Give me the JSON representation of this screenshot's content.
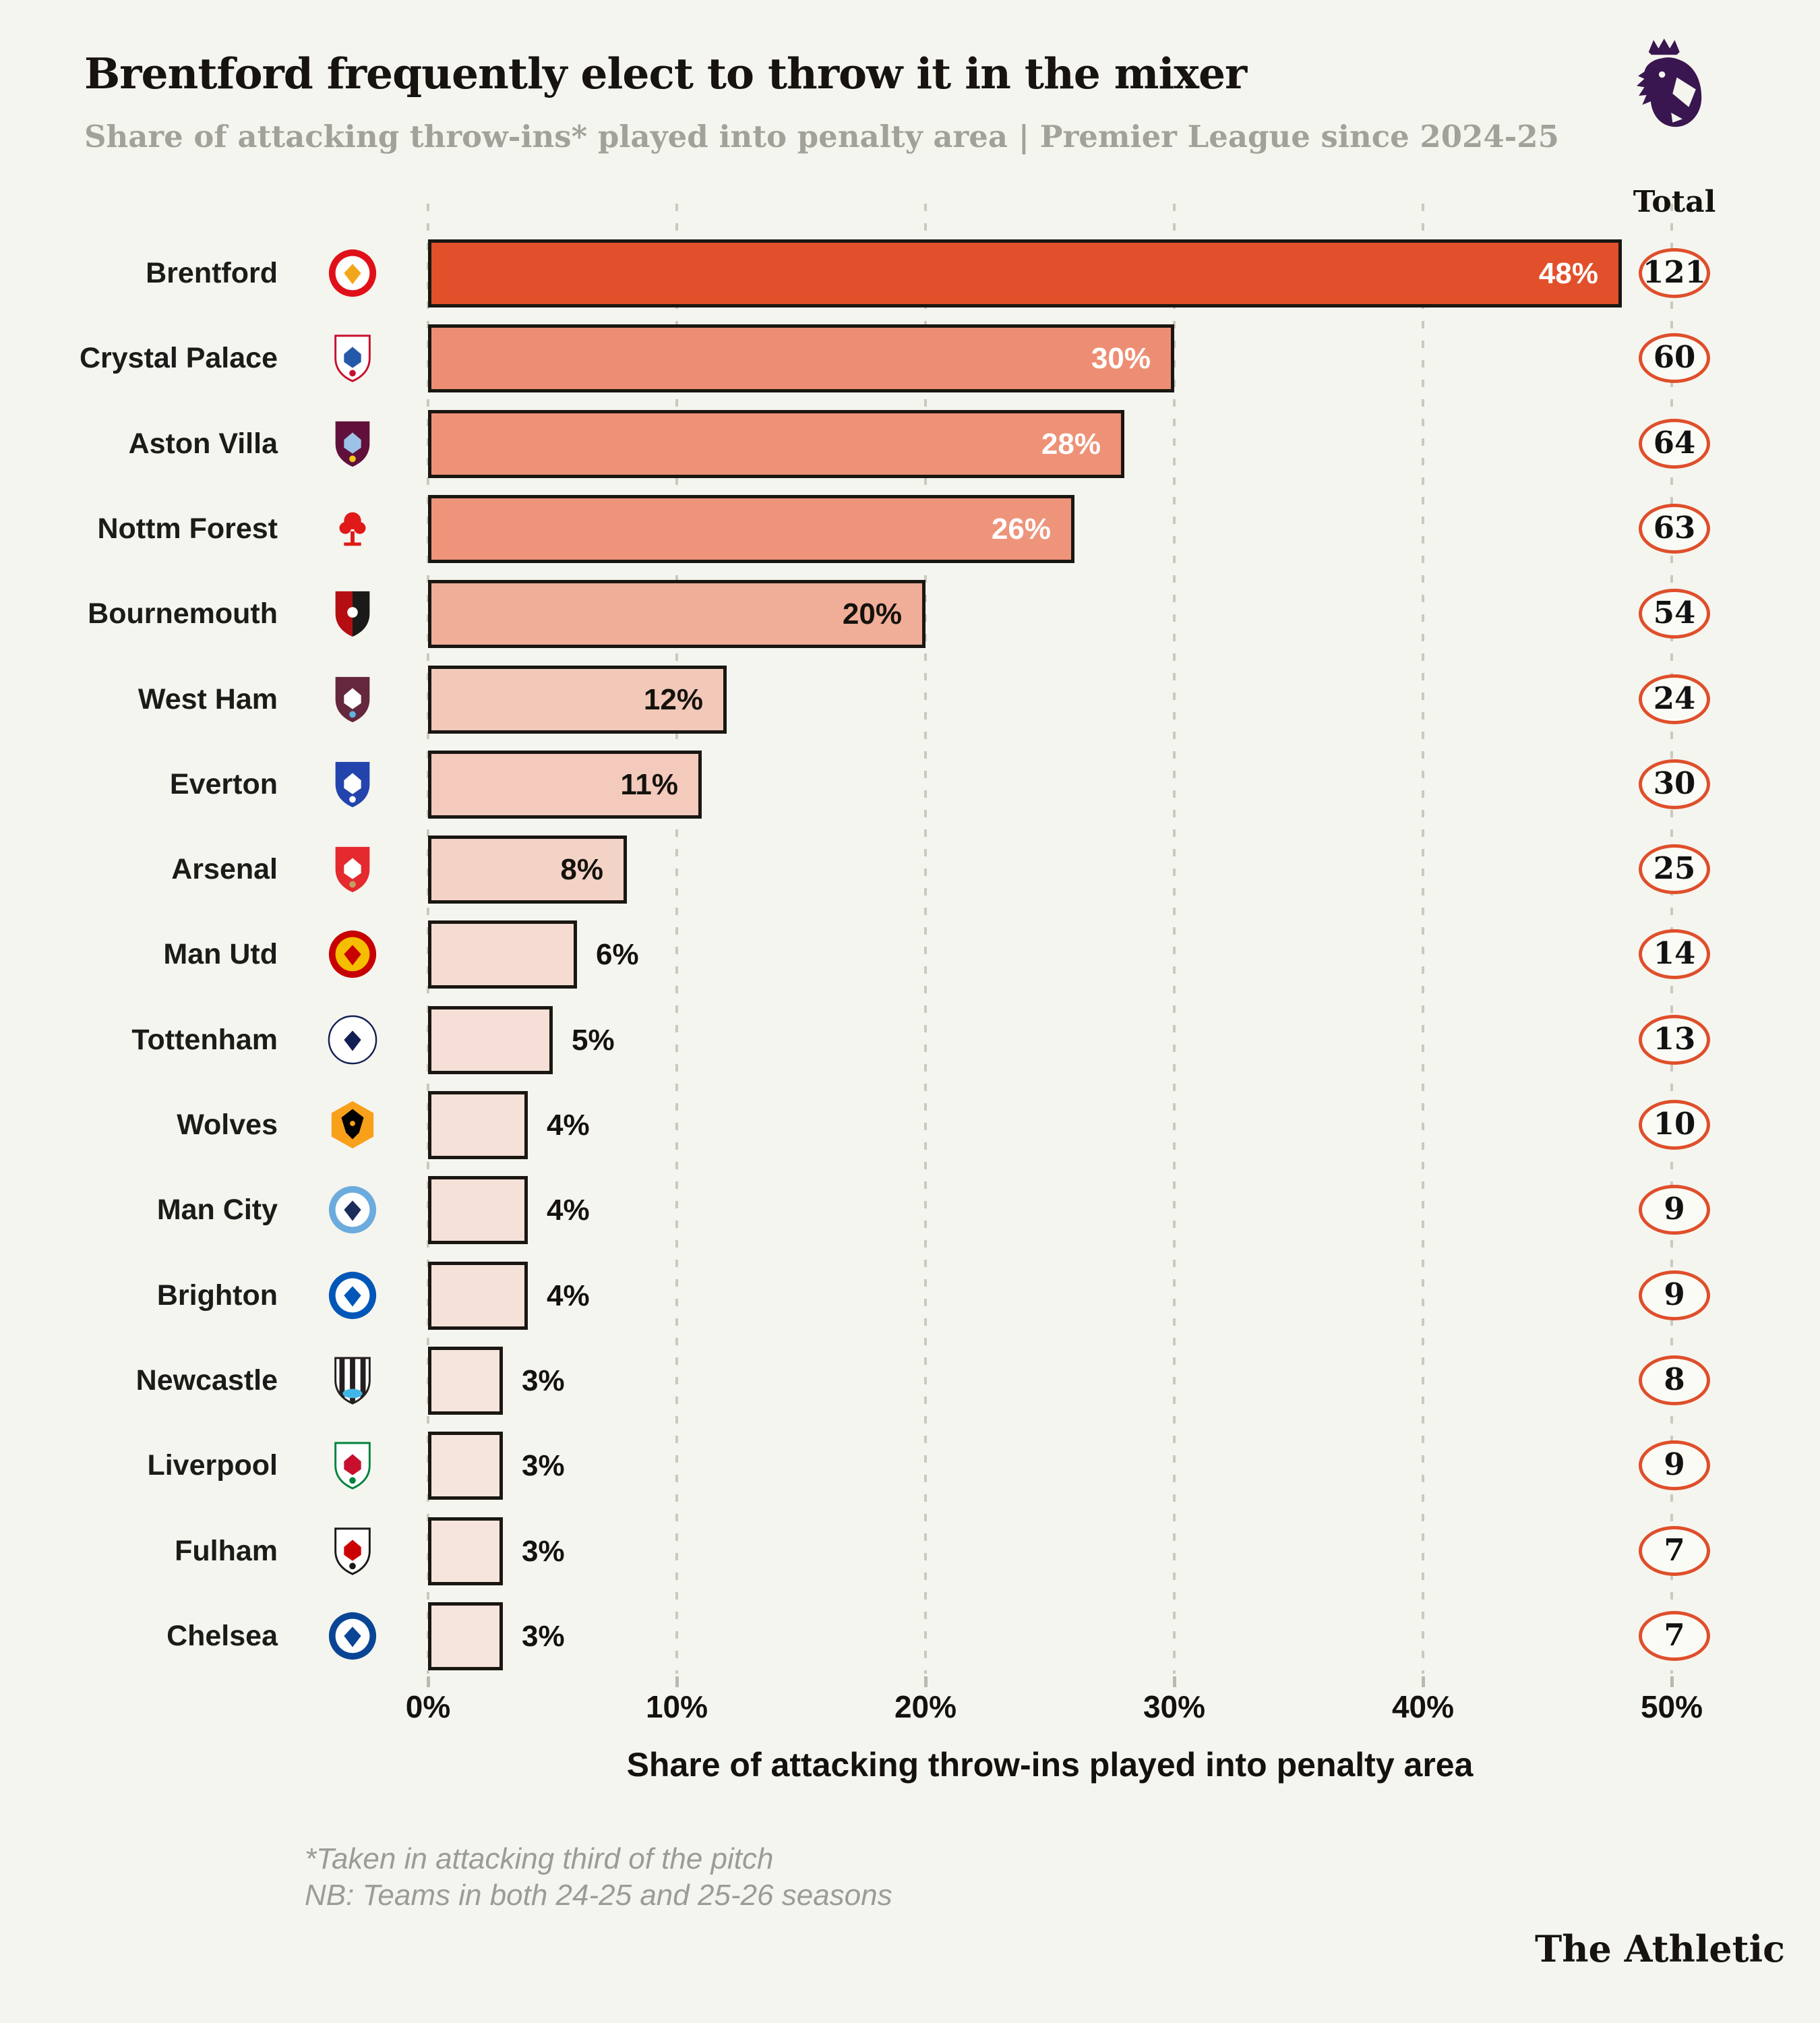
{
  "header": {
    "title": "Brentford frequently elect to throw it in the mixer",
    "subtitle": "Share of attacking throw-ins* played into penalty area | Premier League since 2024-25",
    "league_logo": "premier-league-lion",
    "league_logo_color": "#3A1650"
  },
  "chart_data": {
    "type": "bar",
    "orientation": "horizontal",
    "title": "Brentford frequently elect to throw it in the mixer",
    "xlabel": "Share of attacking throw-ins played into penalty area",
    "x_ticks": [
      "0%",
      "10%",
      "20%",
      "30%",
      "40%",
      "50%"
    ],
    "xlim": [
      0,
      50
    ],
    "grid": "dashed-vertical",
    "total_column_label": "Total",
    "accent_color": "#DF4F2B",
    "teams": [
      {
        "name": "Brentford",
        "value": 48,
        "value_label": "48%",
        "total": 121,
        "bar_color": "#E1502B",
        "logo": {
          "shape": "circle",
          "colors": [
            "#E01019",
            "#FFFFFF",
            "#F2A71B"
          ]
        }
      },
      {
        "name": "Crystal Palace",
        "value": 30,
        "value_label": "30%",
        "total": 60,
        "bar_color": "#ED8E74",
        "logo": {
          "shape": "shield",
          "colors": [
            "#FFFFFF",
            "#2458A8",
            "#C8102E"
          ]
        }
      },
      {
        "name": "Aston Villa",
        "value": 28,
        "value_label": "28%",
        "total": 64,
        "bar_color": "#EE9176",
        "logo": {
          "shape": "shield",
          "colors": [
            "#61103B",
            "#9DC2E8",
            "#F2C918"
          ]
        }
      },
      {
        "name": "Nottm Forest",
        "value": 26,
        "value_label": "26%",
        "total": 63,
        "bar_color": "#EE947B",
        "logo": {
          "shape": "tree",
          "colors": [
            "#F5F5EF",
            "#E01919",
            "#E01919"
          ]
        }
      },
      {
        "name": "Bournemouth",
        "value": 20,
        "value_label": "20%",
        "total": 54,
        "bar_color": "#F0AD98",
        "logo": {
          "shape": "shield-split",
          "colors": [
            "#B50E12",
            "#1A1A18",
            "#FFFFFF"
          ]
        }
      },
      {
        "name": "West Ham",
        "value": 12,
        "value_label": "12%",
        "total": 24,
        "bar_color": "#F2C8B9",
        "logo": {
          "shape": "shield",
          "colors": [
            "#65273D",
            "#FFFFFF",
            "#5FB2E0"
          ]
        }
      },
      {
        "name": "Everton",
        "value": 11,
        "value_label": "11%",
        "total": 30,
        "bar_color": "#F3CABC",
        "logo": {
          "shape": "shield",
          "colors": [
            "#2244AC",
            "#FFFFFF",
            "#FFFFFF"
          ]
        }
      },
      {
        "name": "Arsenal",
        "value": 8,
        "value_label": "8%",
        "total": 25,
        "bar_color": "#F4D3C7",
        "logo": {
          "shape": "shield",
          "colors": [
            "#E4292F",
            "#FFFFFF",
            "#C09E5F"
          ]
        }
      },
      {
        "name": "Man Utd",
        "value": 6,
        "value_label": "6%",
        "total": 14,
        "bar_color": "#F5DBD1",
        "logo": {
          "shape": "circle",
          "colors": [
            "#C70101",
            "#F6BE00",
            "#C70101"
          ]
        }
      },
      {
        "name": "Tottenham",
        "value": 5,
        "value_label": "5%",
        "total": 13,
        "bar_color": "#F5DFD6",
        "logo": {
          "shape": "circle",
          "colors": [
            "#FFFFFF",
            "#FFFFFF",
            "#131F53"
          ]
        }
      },
      {
        "name": "Wolves",
        "value": 4,
        "value_label": "4%",
        "total": 10,
        "bar_color": "#F6E1D8",
        "logo": {
          "shape": "hex",
          "colors": [
            "#F9A01B",
            "#000000",
            "#F9A01B"
          ]
        }
      },
      {
        "name": "Man City",
        "value": 4,
        "value_label": "4%",
        "total": 9,
        "bar_color": "#F6E1D8",
        "logo": {
          "shape": "circle",
          "colors": [
            "#6CABDD",
            "#FFFFFF",
            "#1C2C5B"
          ]
        }
      },
      {
        "name": "Brighton",
        "value": 4,
        "value_label": "4%",
        "total": 9,
        "bar_color": "#F6E1D8",
        "logo": {
          "shape": "circle",
          "colors": [
            "#0057B8",
            "#FFFFFF",
            "#0057B8"
          ]
        }
      },
      {
        "name": "Newcastle",
        "value": 3,
        "value_label": "3%",
        "total": 8,
        "bar_color": "#F6E5DC",
        "logo": {
          "shape": "shield-stripes",
          "colors": [
            "#FFFFFF",
            "#241F20",
            "#41B6E6"
          ]
        }
      },
      {
        "name": "Liverpool",
        "value": 3,
        "value_label": "3%",
        "total": 9,
        "bar_color": "#F6E5DC",
        "logo": {
          "shape": "shield",
          "colors": [
            "#FFFFFF",
            "#C8102E",
            "#00843D"
          ]
        }
      },
      {
        "name": "Fulham",
        "value": 3,
        "value_label": "3%",
        "total": 7,
        "bar_color": "#F6E5DC",
        "logo": {
          "shape": "shield",
          "colors": [
            "#FFFFFF",
            "#CC0000",
            "#1A1A18"
          ]
        }
      },
      {
        "name": "Chelsea",
        "value": 3,
        "value_label": "3%",
        "total": 7,
        "bar_color": "#F6E5DC",
        "logo": {
          "shape": "circle",
          "colors": [
            "#0A4595",
            "#FFFFFF",
            "#0A4595"
          ]
        }
      }
    ],
    "value_label_style": {
      "inside_min_value": 8,
      "white_text_min_value": 26,
      "inside_text_dark": "#15120D",
      "inside_text_light": "#FFFFFF"
    }
  },
  "footnotes": [
    "*Taken in attacking third of the pitch",
    "NB: Teams in both 24-25 and 25-26 seasons"
  ],
  "credit": "The Athletic"
}
